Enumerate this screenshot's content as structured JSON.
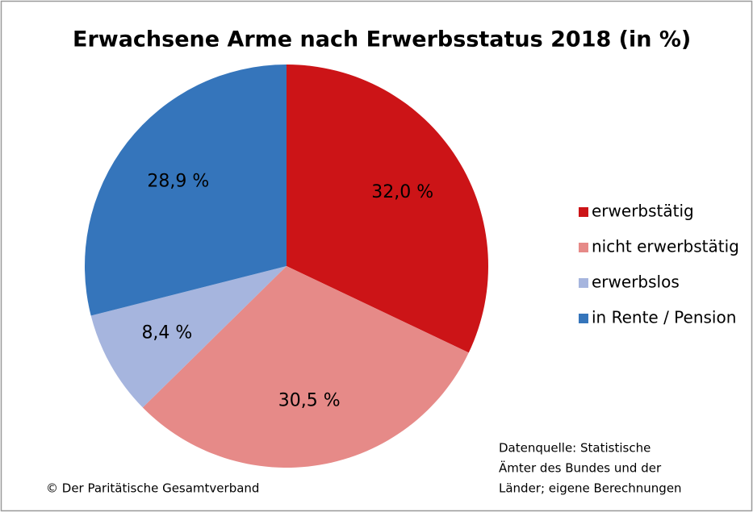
{
  "chart_data": {
    "type": "pie",
    "title": "Erwachsene Arme nach Erwerbsstatus 2018 (in %)",
    "categories": [
      "erwerbstätig",
      "nicht erwerbstätig",
      "erwerbslos",
      "in Rente / Pension"
    ],
    "values": [
      32.0,
      30.5,
      8.4,
      28.9
    ],
    "value_labels": [
      "32,0 %",
      "30,5 %",
      "8,4 %",
      "28,9 %"
    ],
    "colors": [
      "#cc1417",
      "#e68a88",
      "#a6b5de",
      "#3575bb"
    ],
    "legend": "right",
    "source": [
      "Datenquelle: Statistische",
      "Ämter des Bundes und der",
      "Länder; eigene Berechnungen"
    ],
    "copyright": "© Der Paritätische Gesamtverband"
  }
}
